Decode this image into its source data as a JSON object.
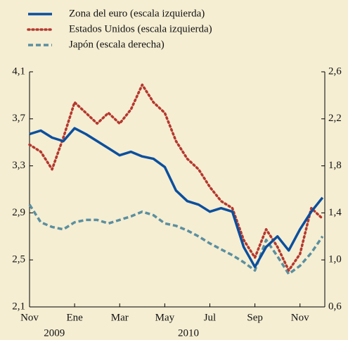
{
  "chart_data": {
    "type": "line",
    "x": [
      0,
      0.5,
      1,
      1.5,
      2,
      2.5,
      3,
      3.5,
      4,
      4.5,
      5,
      5.5,
      6,
      6.5,
      7,
      7.5,
      8,
      8.5,
      9,
      9.5,
      10,
      10.5,
      11,
      11.5,
      12,
      12.5,
      13
    ],
    "xlim": [
      0,
      13.1
    ],
    "xticks": [
      {
        "value": 0,
        "label": "Nov"
      },
      {
        "value": 2,
        "label": "Ene"
      },
      {
        "value": 4,
        "label": "Mar"
      },
      {
        "value": 6,
        "label": "May"
      },
      {
        "value": 8,
        "label": "Jul"
      },
      {
        "value": 10,
        "label": "Sep"
      },
      {
        "value": 12,
        "label": "Nov"
      }
    ],
    "year_labels": [
      {
        "value": 1.1,
        "label": "2009"
      },
      {
        "value": 7.05,
        "label": "2010"
      }
    ],
    "ylim": [
      2.1,
      4.1
    ],
    "yticks": [
      {
        "value": 2.1,
        "label": "2,1"
      },
      {
        "value": 2.5,
        "label": "2,5"
      },
      {
        "value": 2.9,
        "label": "2,9"
      },
      {
        "value": 3.3,
        "label": "3,3"
      },
      {
        "value": 3.7,
        "label": "3,7"
      },
      {
        "value": 4.1,
        "label": "4,1"
      }
    ],
    "y2lim": [
      0.6,
      2.6
    ],
    "y2ticks": [
      {
        "value": 0.6,
        "label": "0,6"
      },
      {
        "value": 1.0,
        "label": "1,0"
      },
      {
        "value": 1.4,
        "label": "1,4"
      },
      {
        "value": 1.8,
        "label": "1,8"
      },
      {
        "value": 2.2,
        "label": "2,2"
      },
      {
        "value": 2.6,
        "label": "2,6"
      }
    ],
    "series": [
      {
        "name": "Zona del euro (escala izquierda)",
        "color": "#0b4f9e",
        "style": "solid",
        "values": [
          3.57,
          3.6,
          3.54,
          3.51,
          3.62,
          3.57,
          3.51,
          3.45,
          3.39,
          3.42,
          3.38,
          3.36,
          3.29,
          3.09,
          3.0,
          2.97,
          2.91,
          2.94,
          2.91,
          2.61,
          2.44,
          2.61,
          2.7,
          2.58,
          2.76,
          2.91,
          3.03
        ]
      },
      {
        "name": "Estados Unidos (escala izquierda)",
        "color": "#b5382e",
        "style": "dotted",
        "values": [
          3.48,
          3.42,
          3.27,
          3.54,
          3.84,
          3.75,
          3.66,
          3.75,
          3.66,
          3.78,
          3.99,
          3.84,
          3.75,
          3.51,
          3.36,
          3.27,
          3.12,
          3.0,
          2.94,
          2.67,
          2.52,
          2.76,
          2.61,
          2.41,
          2.55,
          2.94,
          2.85
        ]
      },
      {
        "name": "Japón (escala derecha)",
        "color": "#5b8f9f",
        "style": "dashed",
        "axis": "y2",
        "values": [
          1.47,
          1.32,
          1.28,
          1.26,
          1.32,
          1.34,
          1.34,
          1.31,
          1.34,
          1.37,
          1.41,
          1.38,
          1.31,
          1.29,
          1.25,
          1.2,
          1.14,
          1.09,
          1.04,
          0.98,
          0.91,
          1.17,
          1.03,
          0.88,
          0.95,
          1.06,
          1.2
        ]
      }
    ]
  }
}
